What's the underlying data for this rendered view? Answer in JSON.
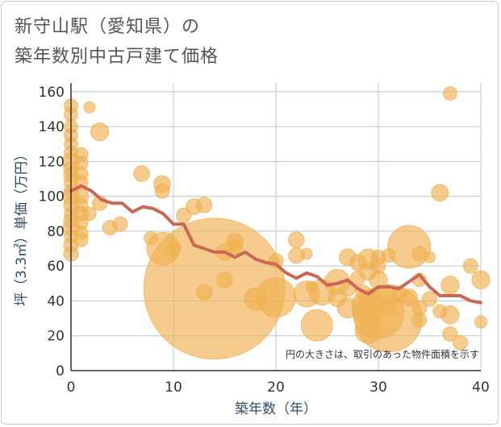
{
  "title": {
    "line1": "新守山駅（愛知県）の",
    "line2": "築年数別中古戸建て価格"
  },
  "note": "円の大きさは、取引のあった物件面積を示す",
  "colors": {
    "bubble": "#f0b050",
    "line": "#cc6655",
    "grid": "#b8c8d8",
    "axis_text": "#2e4d66"
  },
  "chart_data": {
    "type": "scatter",
    "xlabel": "築年数（年）",
    "ylabel": "坪（3.3㎡）単価（万円）",
    "xlim": [
      0,
      40
    ],
    "ylim": [
      0,
      165
    ],
    "xticks": [
      "0",
      "10",
      "20",
      "30",
      "40"
    ],
    "yticks": [
      "0",
      "20",
      "40",
      "60",
      "80",
      "100",
      "120",
      "140",
      "160"
    ],
    "grid": true,
    "bubbles": [
      {
        "x": 0,
        "y": 152,
        "size": 1.2
      },
      {
        "x": 0,
        "y": 147,
        "size": 1.2
      },
      {
        "x": 0,
        "y": 140,
        "size": 1.2
      },
      {
        "x": 0,
        "y": 135,
        "size": 1.2
      },
      {
        "x": 0,
        "y": 130,
        "size": 1.2
      },
      {
        "x": 0,
        "y": 125,
        "size": 1.2
      },
      {
        "x": 0,
        "y": 120,
        "size": 1.5
      },
      {
        "x": 0,
        "y": 116,
        "size": 1.3
      },
      {
        "x": 0,
        "y": 112,
        "size": 1.3
      },
      {
        "x": 0,
        "y": 108,
        "size": 1.2
      },
      {
        "x": 0,
        "y": 103,
        "size": 1.2
      },
      {
        "x": 0,
        "y": 100,
        "size": 1.5
      },
      {
        "x": 0,
        "y": 95,
        "size": 1.3
      },
      {
        "x": 0,
        "y": 90,
        "size": 1.2
      },
      {
        "x": 0,
        "y": 86,
        "size": 1.3
      },
      {
        "x": 0,
        "y": 82,
        "size": 1.4
      },
      {
        "x": 0,
        "y": 77,
        "size": 1.2
      },
      {
        "x": 0,
        "y": 72,
        "size": 1.3
      },
      {
        "x": 0,
        "y": 67,
        "size": 1.3
      },
      {
        "x": 1,
        "y": 124,
        "size": 1.2
      },
      {
        "x": 1,
        "y": 119,
        "size": 1.2
      },
      {
        "x": 1,
        "y": 113,
        "size": 1.2
      },
      {
        "x": 1,
        "y": 108,
        "size": 1.2
      },
      {
        "x": 1,
        "y": 100,
        "size": 1.3
      },
      {
        "x": 1,
        "y": 95,
        "size": 1.2
      },
      {
        "x": 1,
        "y": 90,
        "size": 1.3
      },
      {
        "x": 1,
        "y": 85,
        "size": 1.2
      },
      {
        "x": 1,
        "y": 79,
        "size": 1.2
      },
      {
        "x": 1,
        "y": 75,
        "size": 1.2
      },
      {
        "x": 1.8,
        "y": 151,
        "size": 1.0
      },
      {
        "x": 1.8,
        "y": 90,
        "size": 1.2
      },
      {
        "x": 2.8,
        "y": 137,
        "size": 1.6
      },
      {
        "x": 2.8,
        "y": 96,
        "size": 1.3
      },
      {
        "x": 3.8,
        "y": 82,
        "size": 1.3
      },
      {
        "x": 4.8,
        "y": 84,
        "size": 1.3
      },
      {
        "x": 6.9,
        "y": 113,
        "size": 1.4
      },
      {
        "x": 7.8,
        "y": 76,
        "size": 1.2
      },
      {
        "x": 8.9,
        "y": 107,
        "size": 1.5
      },
      {
        "x": 8.9,
        "y": 103,
        "size": 1.3
      },
      {
        "x": 9,
        "y": 70,
        "size": 2.9
      },
      {
        "x": 10,
        "y": 70,
        "size": 1.3
      },
      {
        "x": 11,
        "y": 89,
        "size": 1.3
      },
      {
        "x": 12,
        "y": 94,
        "size": 1.4
      },
      {
        "x": 13,
        "y": 95,
        "size": 1.4
      },
      {
        "x": 13,
        "y": 45,
        "size": 1.4
      },
      {
        "x": 14,
        "y": 47,
        "size": 12.5
      },
      {
        "x": 15,
        "y": 68,
        "size": 1.5
      },
      {
        "x": 15,
        "y": 52,
        "size": 1.4
      },
      {
        "x": 16,
        "y": 74,
        "size": 1.5
      },
      {
        "x": 16,
        "y": 71,
        "size": 1.3
      },
      {
        "x": 18,
        "y": 41,
        "size": 2.0
      },
      {
        "x": 20,
        "y": 63,
        "size": 1.3
      },
      {
        "x": 20,
        "y": 42,
        "size": 3.5
      },
      {
        "x": 22,
        "y": 75,
        "size": 1.4
      },
      {
        "x": 22,
        "y": 66,
        "size": 1.4
      },
      {
        "x": 23,
        "y": 67,
        "size": 1.0
      },
      {
        "x": 23,
        "y": 44,
        "size": 2.3
      },
      {
        "x": 23.5,
        "y": 48,
        "size": 1.0
      },
      {
        "x": 24,
        "y": 26,
        "size": 2.8
      },
      {
        "x": 24.5,
        "y": 45,
        "size": 2.3
      },
      {
        "x": 26,
        "y": 51,
        "size": 2.2
      },
      {
        "x": 26,
        "y": 42,
        "size": 1.6
      },
      {
        "x": 27,
        "y": 65,
        "size": 1.5
      },
      {
        "x": 27,
        "y": 47,
        "size": 1.4
      },
      {
        "x": 27,
        "y": 36,
        "size": 1.8
      },
      {
        "x": 28,
        "y": 62,
        "size": 1.4
      },
      {
        "x": 28,
        "y": 53,
        "size": 1.3
      },
      {
        "x": 28.5,
        "y": 45,
        "size": 1.3
      },
      {
        "x": 29,
        "y": 64,
        "size": 1.8
      },
      {
        "x": 29,
        "y": 57,
        "size": 1.6
      },
      {
        "x": 29,
        "y": 37,
        "size": 2.9
      },
      {
        "x": 29,
        "y": 23,
        "size": 2.3
      },
      {
        "x": 30,
        "y": 65,
        "size": 1.3
      },
      {
        "x": 30,
        "y": 60,
        "size": 1.3
      },
      {
        "x": 30,
        "y": 52,
        "size": 1.6
      },
      {
        "x": 30,
        "y": 33,
        "size": 4.5
      },
      {
        "x": 31,
        "y": 66,
        "size": 1.2
      },
      {
        "x": 31,
        "y": 37,
        "size": 1.3
      },
      {
        "x": 31,
        "y": 30,
        "size": 6.0
      },
      {
        "x": 32,
        "y": 44,
        "size": 1.3
      },
      {
        "x": 33,
        "y": 71,
        "size": 3.8
      },
      {
        "x": 33,
        "y": 42,
        "size": 1.5
      },
      {
        "x": 34,
        "y": 67,
        "size": 1.3
      },
      {
        "x": 34,
        "y": 52,
        "size": 1.2
      },
      {
        "x": 34,
        "y": 36,
        "size": 1.3
      },
      {
        "x": 34,
        "y": 29,
        "size": 1.3
      },
      {
        "x": 35,
        "y": 65,
        "size": 1.0
      },
      {
        "x": 35,
        "y": 41,
        "size": 1.3
      },
      {
        "x": 36,
        "y": 102,
        "size": 1.5
      },
      {
        "x": 36,
        "y": 34,
        "size": 1.2
      },
      {
        "x": 37,
        "y": 159,
        "size": 1.2
      },
      {
        "x": 37,
        "y": 49,
        "size": 1.6
      },
      {
        "x": 37,
        "y": 32,
        "size": 1.6
      },
      {
        "x": 37,
        "y": 21,
        "size": 1.3
      },
      {
        "x": 38,
        "y": 16,
        "size": 1.3
      },
      {
        "x": 39,
        "y": 60,
        "size": 1.3
      },
      {
        "x": 40,
        "y": 52,
        "size": 1.6
      },
      {
        "x": 40,
        "y": 28,
        "size": 1.1
      }
    ],
    "trend_line": {
      "x": [
        0,
        1,
        2,
        3,
        4,
        5,
        6,
        7,
        8,
        9,
        10,
        11,
        12,
        13,
        14,
        15,
        16,
        17,
        18,
        19,
        20,
        21,
        22,
        23,
        24,
        25,
        26,
        27,
        28,
        29,
        30,
        31,
        32,
        33,
        34,
        35,
        36,
        37,
        38,
        39,
        40
      ],
      "y": [
        103,
        106,
        103,
        98,
        96,
        96,
        91,
        94,
        93,
        90,
        84,
        84,
        72,
        70,
        68,
        68,
        65,
        68,
        64,
        62,
        61,
        56,
        53,
        56,
        54,
        49,
        50,
        52,
        47,
        44,
        48,
        48,
        47,
        51,
        55,
        48,
        43,
        43,
        43,
        40,
        39
      ]
    }
  }
}
